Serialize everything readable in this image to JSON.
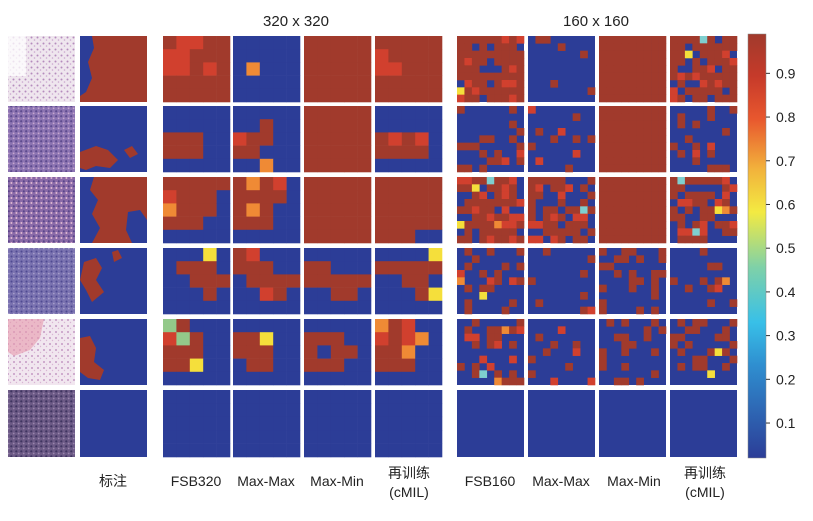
{
  "figure": {
    "group_titles": [
      "320 x 320",
      "160 x 160"
    ],
    "column_labels": [
      [
        "标注"
      ],
      [
        "FSB320"
      ],
      [
        "Max-Max"
      ],
      [
        "Max-Min"
      ],
      [
        "再训练",
        "(cMIL)"
      ],
      [
        "FSB160"
      ],
      [
        "Max-Max"
      ],
      [
        "Max-Min"
      ],
      [
        "再训练",
        "(cMIL)"
      ]
    ],
    "colorbar": {
      "ticks": [
        "0.9",
        "0.8",
        "0.7",
        "0.6",
        "0.5",
        "0.4",
        "0.3",
        "0.2",
        "0.1"
      ],
      "range": [
        0.02,
        0.99
      ],
      "colormap": [
        "#2c3d97",
        "#2f8fd0",
        "#38c0e8",
        "#7fd1a8",
        "#f3ea42",
        "#f2b33c",
        "#e8572e",
        "#c63a2a",
        "#a13a2c"
      ]
    },
    "colors": {
      "background": "#2c3d97",
      "tumor": "#a13a2c",
      "red": "#d1402e",
      "orange": "#ef8a35",
      "yellow": "#f5df3b",
      "green": "#93c98a",
      "cyan": "#7fcfcf",
      "tissue_purple": "#8a6aa8",
      "tissue_pink": "#e8bcc8"
    }
  }
}
